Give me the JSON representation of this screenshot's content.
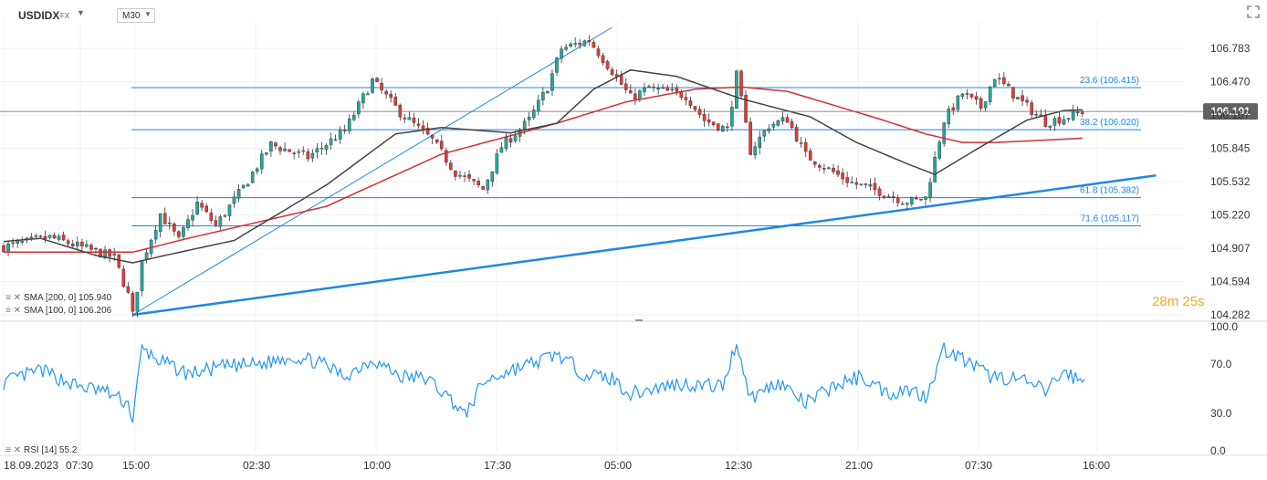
{
  "header": {
    "symbol": "USDIDX",
    "symbol_sub": "FX",
    "timeframe": "M30"
  },
  "timer": {
    "minutes": "28",
    "m": "m",
    "seconds": "25",
    "s": "s"
  },
  "colors": {
    "candle_up": "#26a69a",
    "candle_down": "#e53935",
    "sma200": "#d32f2f",
    "sma100": "#444444",
    "fib": "#1e88e5",
    "trend": "#1e88e5",
    "rsi": "#2196f3",
    "timer": "#f5a623"
  },
  "chart_data": [
    {
      "type": "candlestick",
      "title": "",
      "price_axis": [
        "106.783",
        "106.470",
        "106.157",
        "105.845",
        "105.532",
        "105.220",
        "104.907",
        "104.594",
        "104.282"
      ],
      "time_axis": [
        "18.09.2023",
        "07:30",
        "15:00",
        "02:30",
        "10:00",
        "17:30",
        "05:00",
        "12:30",
        "21:00",
        "07:30",
        "16:00"
      ],
      "ylim": [
        104.282,
        106.95
      ],
      "current_price": "106.191",
      "candle_count": 235,
      "close_path": [
        [
          0,
          104.92
        ],
        [
          10,
          105.01
        ],
        [
          24,
          104.82
        ],
        [
          27,
          104.47
        ],
        [
          28,
          104.28
        ],
        [
          30,
          104.78
        ],
        [
          34,
          105.23
        ],
        [
          38,
          104.98
        ],
        [
          42,
          105.33
        ],
        [
          46,
          105.12
        ],
        [
          52,
          105.48
        ],
        [
          58,
          105.88
        ],
        [
          66,
          105.76
        ],
        [
          74,
          106.01
        ],
        [
          80,
          106.48
        ],
        [
          86,
          106.18
        ],
        [
          93,
          105.92
        ],
        [
          98,
          105.62
        ],
        [
          104,
          105.46
        ],
        [
          108,
          105.86
        ],
        [
          114,
          106.11
        ],
        [
          118,
          106.42
        ],
        [
          121,
          106.78
        ],
        [
          127,
          106.86
        ],
        [
          132,
          106.57
        ],
        [
          136,
          106.32
        ],
        [
          140,
          106.41
        ],
        [
          148,
          106.34
        ],
        [
          152,
          106.11
        ],
        [
          157,
          106.02
        ],
        [
          159,
          106.53
        ],
        [
          162,
          105.82
        ],
        [
          166,
          106.06
        ],
        [
          170,
          106.12
        ],
        [
          174,
          105.78
        ],
        [
          180,
          105.62
        ],
        [
          184,
          105.52
        ],
        [
          190,
          105.44
        ],
        [
          196,
          105.34
        ],
        [
          200,
          105.38
        ],
        [
          204,
          106.11
        ],
        [
          208,
          106.36
        ],
        [
          212,
          106.23
        ],
        [
          215,
          106.52
        ],
        [
          220,
          106.31
        ],
        [
          226,
          106.09
        ],
        [
          230,
          106.13
        ],
        [
          234,
          106.191
        ]
      ],
      "series": [
        {
          "name": "SMA [200, 0]",
          "value": "105.940"
        },
        {
          "name": "SMA [100, 0]",
          "value": "106.206"
        }
      ],
      "sma200_path": [
        [
          0,
          104.87
        ],
        [
          28,
          104.87
        ],
        [
          40,
          105.0
        ],
        [
          70,
          105.3
        ],
        [
          95,
          105.79
        ],
        [
          120,
          106.08
        ],
        [
          135,
          106.28
        ],
        [
          150,
          106.4
        ],
        [
          160,
          106.42
        ],
        [
          170,
          106.38
        ],
        [
          180,
          106.25
        ],
        [
          190,
          106.12
        ],
        [
          200,
          105.98
        ],
        [
          208,
          105.9
        ],
        [
          215,
          105.9
        ],
        [
          225,
          105.92
        ],
        [
          234,
          105.94
        ]
      ],
      "sma100_path": [
        [
          0,
          104.97
        ],
        [
          8,
          105.0
        ],
        [
          20,
          104.84
        ],
        [
          28,
          104.77
        ],
        [
          35,
          104.84
        ],
        [
          50,
          104.98
        ],
        [
          70,
          105.5
        ],
        [
          85,
          105.98
        ],
        [
          95,
          106.04
        ],
        [
          110,
          105.99
        ],
        [
          120,
          106.08
        ],
        [
          128,
          106.4
        ],
        [
          136,
          106.58
        ],
        [
          146,
          106.52
        ],
        [
          160,
          106.31
        ],
        [
          175,
          106.14
        ],
        [
          185,
          105.9
        ],
        [
          196,
          105.7
        ],
        [
          202,
          105.6
        ],
        [
          212,
          105.86
        ],
        [
          222,
          106.11
        ],
        [
          230,
          106.2
        ],
        [
          234,
          106.206
        ]
      ],
      "fib_levels": [
        {
          "label": "23.6 (106.415)",
          "value": 106.415
        },
        {
          "label": "38.2 (106.020)",
          "value": 106.02
        },
        {
          "label": "61.8 (105.382)",
          "value": 105.382
        },
        {
          "label": "71.6 (105.117)",
          "value": 105.117
        }
      ],
      "trend_lines": [
        {
          "from": [
            28,
            104.282
          ],
          "to": [
            132,
            106.98
          ]
        },
        {
          "from": [
            28,
            104.282
          ],
          "to": [
            250,
            105.59
          ]
        }
      ]
    },
    {
      "type": "line",
      "title": "",
      "series": [
        {
          "name": "RSI [14]",
          "value": "55.2"
        }
      ],
      "y_axis": [
        "100.0",
        "70.0",
        "30.0",
        "0.0"
      ],
      "ylim": [
        0,
        100
      ],
      "rsi_path": [
        [
          0,
          55
        ],
        [
          8,
          65
        ],
        [
          16,
          52
        ],
        [
          22,
          48
        ],
        [
          27,
          38
        ],
        [
          28,
          25
        ],
        [
          30,
          82
        ],
        [
          34,
          72
        ],
        [
          40,
          62
        ],
        [
          48,
          68
        ],
        [
          56,
          70
        ],
        [
          62,
          76
        ],
        [
          68,
          72
        ],
        [
          74,
          60
        ],
        [
          80,
          74
        ],
        [
          86,
          60
        ],
        [
          92,
          58
        ],
        [
          98,
          38
        ],
        [
          100,
          28
        ],
        [
          104,
          55
        ],
        [
          110,
          65
        ],
        [
          116,
          72
        ],
        [
          120,
          78
        ],
        [
          126,
          62
        ],
        [
          132,
          58
        ],
        [
          136,
          46
        ],
        [
          146,
          54
        ],
        [
          156,
          52
        ],
        [
          159,
          88
        ],
        [
          162,
          42
        ],
        [
          168,
          56
        ],
        [
          174,
          38
        ],
        [
          180,
          52
        ],
        [
          186,
          60
        ],
        [
          192,
          46
        ],
        [
          196,
          50
        ],
        [
          200,
          44
        ],
        [
          204,
          82
        ],
        [
          208,
          74
        ],
        [
          214,
          60
        ],
        [
          220,
          58
        ],
        [
          226,
          48
        ],
        [
          230,
          64
        ],
        [
          234,
          55.2
        ]
      ]
    }
  ]
}
